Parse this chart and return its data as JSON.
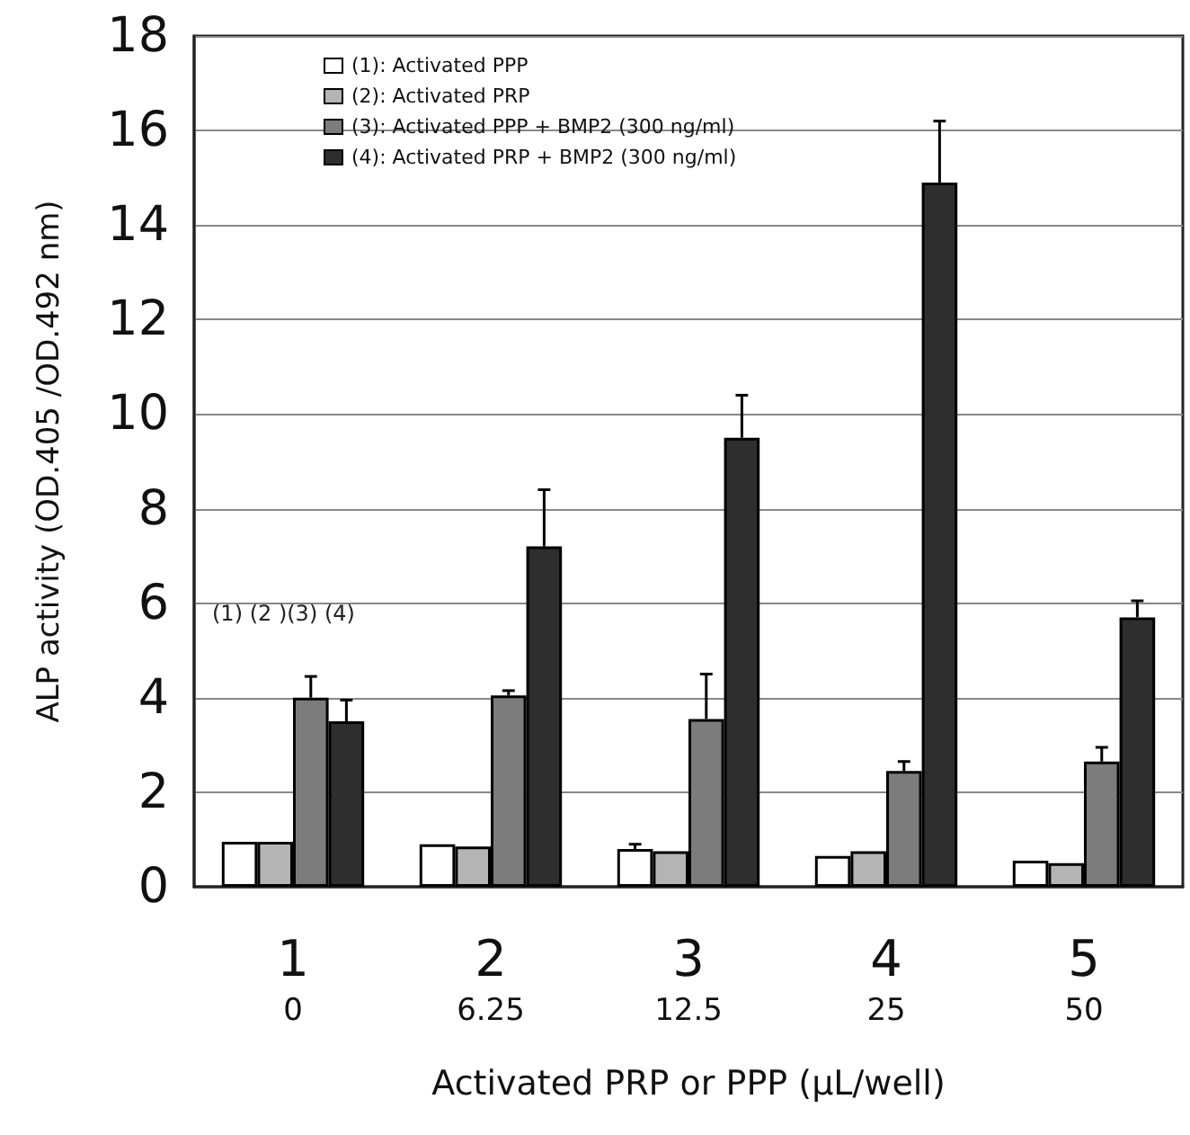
{
  "chart_data": {
    "type": "bar",
    "categories": [
      "1\n0",
      "2\n6.25",
      "3\n12.5",
      "4\n25",
      "5\n50"
    ],
    "xlabel": "Activated PRP or PPP (μL/well)",
    "ylabel": "ALP activity (OD.405 /OD.492 nm)",
    "ylim": [
      0,
      18
    ],
    "yticks": [
      0,
      2,
      4,
      6,
      8,
      10,
      12,
      14,
      16,
      18
    ],
    "grid": "y",
    "legend": "top left",
    "series": [
      {
        "name": "(1): Activated PPP",
        "color": "#ffffff",
        "values": [
          0.95,
          0.9,
          0.8,
          0.65,
          0.55
        ],
        "errors": [
          null,
          null,
          [
            0.8,
            0.9
          ],
          null,
          null
        ]
      },
      {
        "name": "(2): Activated PRP",
        "color": "#b4b4b4",
        "values": [
          0.95,
          0.85,
          0.75,
          0.75,
          0.5
        ],
        "errors": [
          null,
          null,
          null,
          null,
          null
        ]
      },
      {
        "name": "(3): Activated PPP + BMP2 (300 ng/ml)",
        "color": "#7c7c7c",
        "values": [
          4.0,
          4.05,
          3.55,
          2.45,
          2.65
        ],
        "errors": [
          [
            4.0,
            4.45
          ],
          [
            4.05,
            4.15
          ],
          [
            3.55,
            4.5
          ],
          [
            2.45,
            2.65
          ],
          [
            2.65,
            2.95
          ]
        ]
      },
      {
        "name": "(4): Activated PRP + BMP2 (300 ng/ml)",
        "color": "#2e2e2e",
        "values": [
          3.5,
          7.2,
          9.5,
          14.9,
          5.7
        ],
        "errors": [
          [
            3.5,
            3.95
          ],
          [
            7.2,
            8.4
          ],
          [
            9.5,
            10.4
          ],
          [
            14.9,
            16.2
          ],
          [
            5.7,
            6.05
          ]
        ]
      }
    ],
    "annotations": [
      "(1) (2 )(3) (4)"
    ]
  }
}
